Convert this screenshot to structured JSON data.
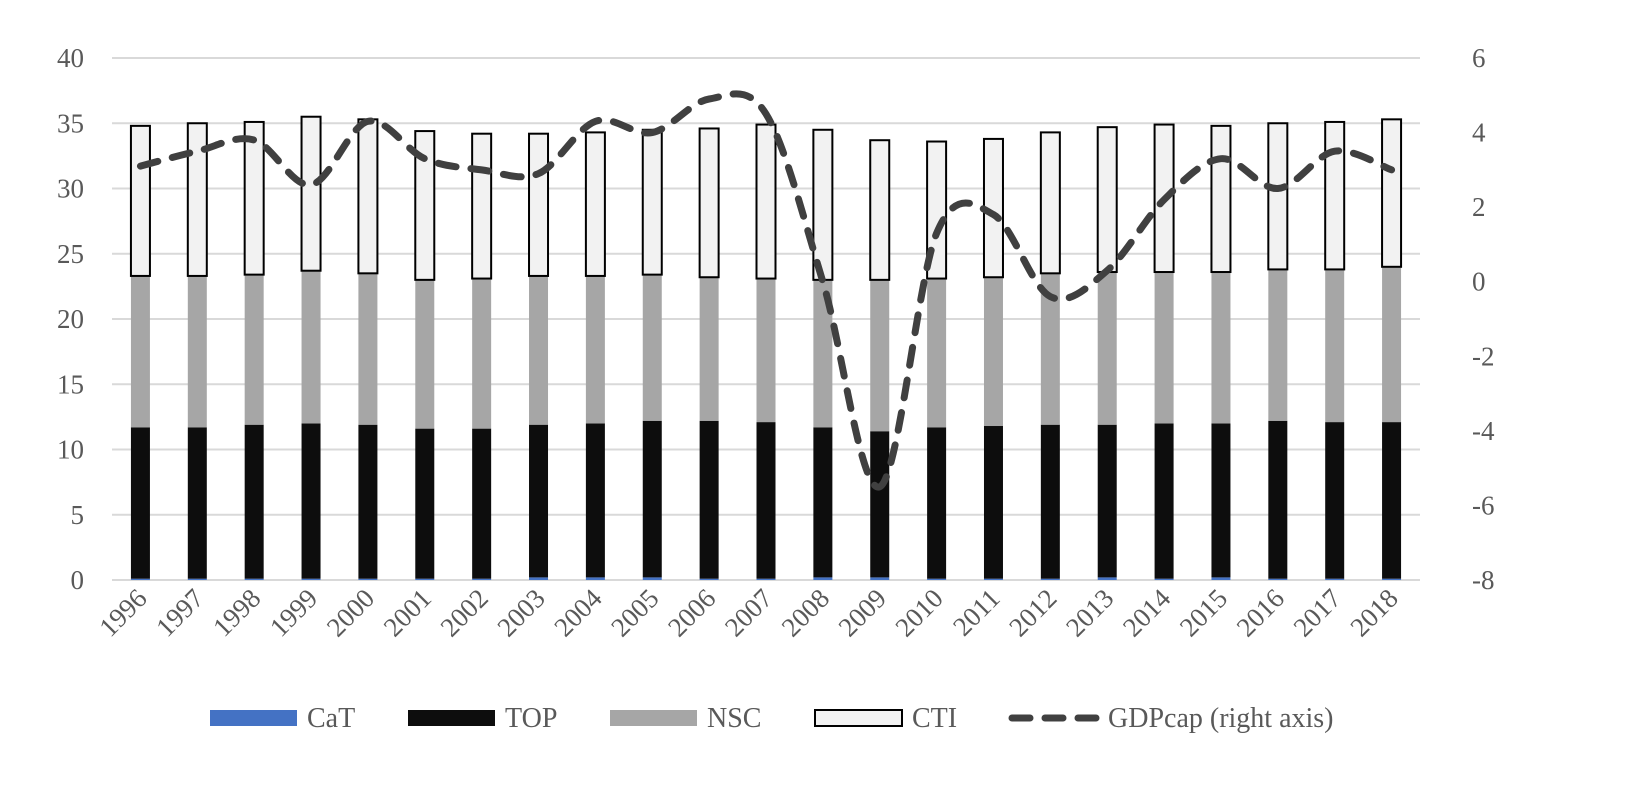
{
  "chart_data": {
    "type": "bar",
    "stacked": true,
    "categories": [
      "1996",
      "1997",
      "1998",
      "1999",
      "2000",
      "2001",
      "2002",
      "2003",
      "2004",
      "2005",
      "2006",
      "2007",
      "2008",
      "2009",
      "2010",
      "2011",
      "2012",
      "2013",
      "2014",
      "2015",
      "2016",
      "2017",
      "2018"
    ],
    "series": [
      {
        "name": "CaT",
        "type": "bar",
        "color": "#4472c4",
        "axis": "left",
        "values": [
          0.1,
          0.1,
          0.1,
          0.1,
          0.1,
          0.1,
          0.1,
          0.2,
          0.2,
          0.2,
          0.1,
          0.1,
          0.2,
          0.2,
          0.1,
          0.1,
          0.1,
          0.2,
          0.1,
          0.2,
          0.1,
          0.1,
          0.1
        ]
      },
      {
        "name": "TOP",
        "type": "bar",
        "color": "#0d0d0d",
        "axis": "left",
        "values": [
          11.6,
          11.6,
          11.8,
          11.9,
          11.8,
          11.5,
          11.5,
          11.7,
          11.8,
          12.0,
          12.1,
          12.0,
          11.5,
          11.2,
          11.6,
          11.7,
          11.8,
          11.7,
          11.9,
          11.8,
          12.1,
          12.0,
          12.0
        ]
      },
      {
        "name": "NSC",
        "type": "bar",
        "color": "#a6a6a6",
        "axis": "left",
        "values": [
          11.6,
          11.6,
          11.5,
          11.7,
          11.6,
          11.4,
          11.5,
          11.4,
          11.3,
          11.2,
          11.0,
          11.0,
          11.3,
          11.6,
          11.4,
          11.4,
          11.6,
          11.7,
          11.6,
          11.6,
          11.6,
          11.7,
          11.9
        ]
      },
      {
        "name": "CTI",
        "type": "bar",
        "color": "#f2f2f2",
        "outline": "#000000",
        "axis": "left",
        "values": [
          11.5,
          11.7,
          11.7,
          11.8,
          11.8,
          11.4,
          11.1,
          10.9,
          11.0,
          11.1,
          11.4,
          11.8,
          11.5,
          10.7,
          10.5,
          10.6,
          10.8,
          11.1,
          11.3,
          11.2,
          11.2,
          11.3,
          11.3
        ]
      },
      {
        "name": "GDPcap (right axis)",
        "type": "line",
        "style": "dashed",
        "color": "#404040",
        "axis": "right",
        "values": [
          3.1,
          3.5,
          3.8,
          2.6,
          4.3,
          3.3,
          3.0,
          2.9,
          4.3,
          4.0,
          4.9,
          4.5,
          0.0,
          -5.5,
          1.3,
          1.8,
          -0.4,
          0.3,
          2.2,
          3.3,
          2.5,
          3.5,
          3.0
        ]
      }
    ],
    "ylim": [
      0,
      40
    ],
    "yticks": [
      "0",
      "5",
      "10",
      "15",
      "20",
      "25",
      "30",
      "35",
      "40"
    ],
    "y2lim": [
      -8,
      6
    ],
    "y2ticks": [
      "-8",
      "-6",
      "-4",
      "-2",
      "0",
      "2",
      "4",
      "6"
    ],
    "grid": true,
    "legend_position": "bottom"
  }
}
